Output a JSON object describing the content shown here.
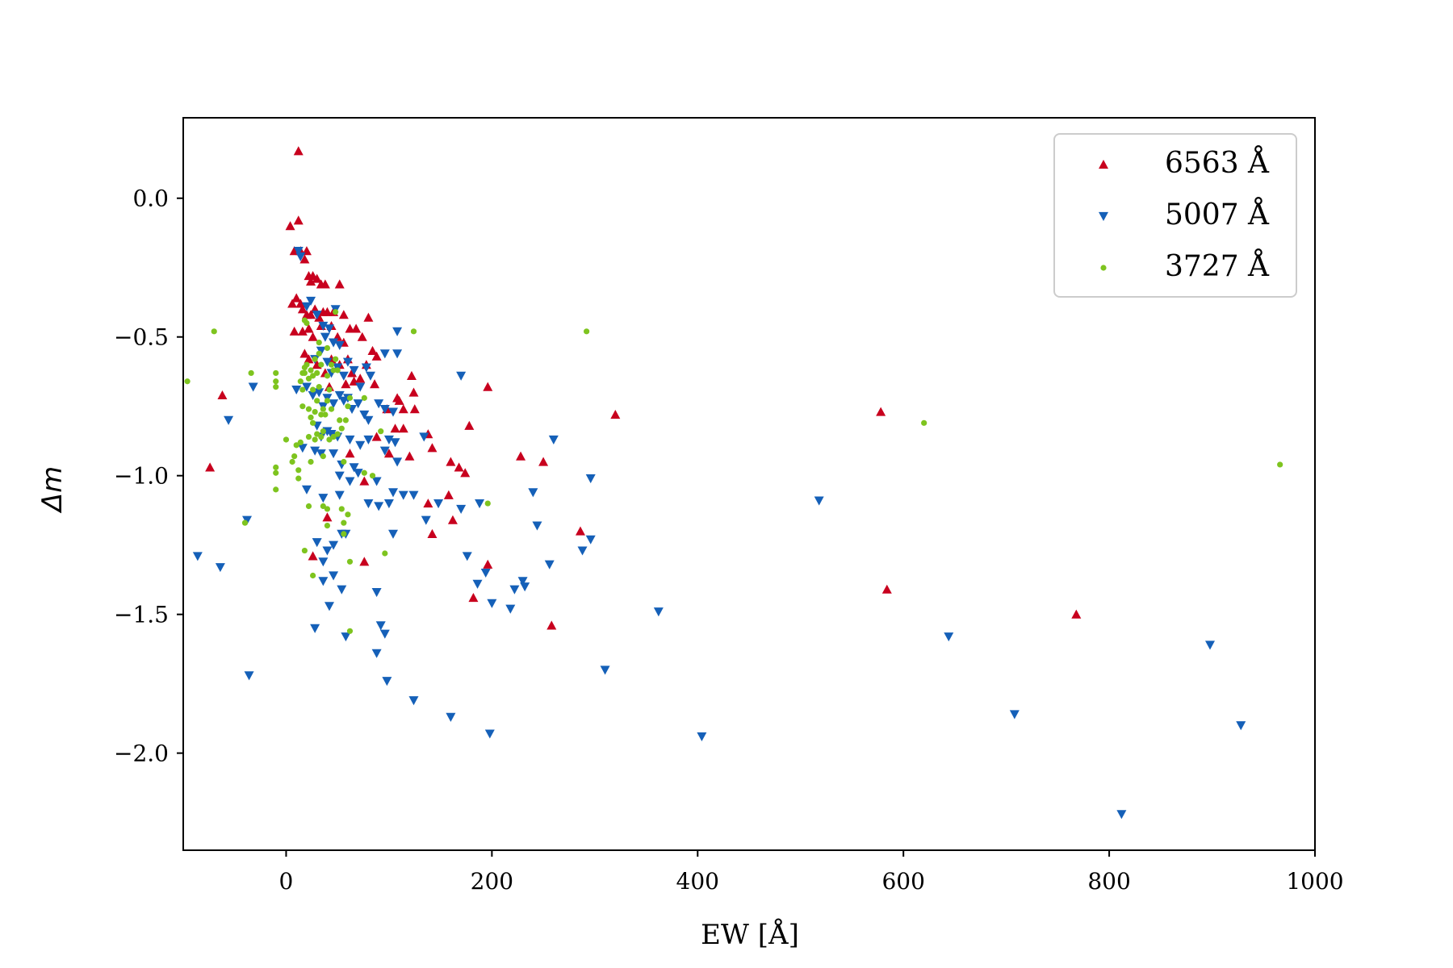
{
  "chart_data": {
    "type": "scatter",
    "xlabel": "EW [Å]",
    "ylabel": "Δm",
    "xlim": [
      -100,
      1000
    ],
    "ylim": [
      -2.35,
      0.29
    ],
    "x_ticks": [
      0,
      200,
      400,
      600,
      800,
      1000
    ],
    "x_tick_labels": [
      "0",
      "200",
      "400",
      "600",
      "800",
      "1000"
    ],
    "y_ticks": [
      0.0,
      -0.5,
      -1.0,
      -1.5,
      -2.0
    ],
    "y_tick_labels": [
      "0.0",
      "−0.5",
      "−1.0",
      "−1.5",
      "−2.0"
    ],
    "grid": false,
    "legend_position": "top-right",
    "series": [
      {
        "name": "6563 Å",
        "marker": "triangle-up",
        "color": "#c8001e",
        "points": [
          [
            12,
            0.17
          ],
          [
            12,
            -0.08
          ],
          [
            4,
            -0.1
          ],
          [
            8,
            -0.19
          ],
          [
            14,
            -0.19
          ],
          [
            18,
            -0.22
          ],
          [
            20,
            -0.19
          ],
          [
            22,
            -0.28
          ],
          [
            24,
            -0.3
          ],
          [
            26,
            -0.28
          ],
          [
            30,
            -0.29
          ],
          [
            34,
            -0.31
          ],
          [
            38,
            -0.31
          ],
          [
            52,
            -0.31
          ],
          [
            6,
            -0.38
          ],
          [
            10,
            -0.36
          ],
          [
            14,
            -0.38
          ],
          [
            16,
            -0.4
          ],
          [
            20,
            -0.42
          ],
          [
            24,
            -0.42
          ],
          [
            28,
            -0.4
          ],
          [
            32,
            -0.43
          ],
          [
            36,
            -0.41
          ],
          [
            40,
            -0.41
          ],
          [
            46,
            -0.41
          ],
          [
            56,
            -0.42
          ],
          [
            80,
            -0.43
          ],
          [
            8,
            -0.48
          ],
          [
            16,
            -0.48
          ],
          [
            22,
            -0.47
          ],
          [
            26,
            -0.5
          ],
          [
            34,
            -0.46
          ],
          [
            44,
            -0.46
          ],
          [
            50,
            -0.5
          ],
          [
            56,
            -0.52
          ],
          [
            62,
            -0.47
          ],
          [
            68,
            -0.47
          ],
          [
            74,
            -0.5
          ],
          [
            84,
            -0.55
          ],
          [
            88,
            -0.57
          ],
          [
            18,
            -0.56
          ],
          [
            22,
            -0.58
          ],
          [
            30,
            -0.6
          ],
          [
            38,
            -0.63
          ],
          [
            44,
            -0.58
          ],
          [
            52,
            -0.6
          ],
          [
            60,
            -0.58
          ],
          [
            64,
            -0.63
          ],
          [
            72,
            -0.65
          ],
          [
            78,
            -0.6
          ],
          [
            86,
            -0.67
          ],
          [
            42,
            -0.68
          ],
          [
            58,
            -0.67
          ],
          [
            66,
            -0.66
          ],
          [
            110,
            -0.73
          ],
          [
            114,
            -0.76
          ],
          [
            122,
            -0.64
          ],
          [
            124,
            -0.7
          ],
          [
            108,
            -0.72
          ],
          [
            125,
            -0.76
          ],
          [
            -62,
            -0.71
          ],
          [
            -74,
            -0.97
          ],
          [
            98,
            -0.76
          ],
          [
            106,
            -0.83
          ],
          [
            114,
            -0.83
          ],
          [
            88,
            -0.86
          ],
          [
            138,
            -0.85
          ],
          [
            142,
            -0.9
          ],
          [
            120,
            -0.93
          ],
          [
            100,
            -0.92
          ],
          [
            62,
            -0.92
          ],
          [
            76,
            -1.02
          ],
          [
            40,
            -1.15
          ],
          [
            26,
            -1.29
          ],
          [
            76,
            -1.31
          ],
          [
            160,
            -0.95
          ],
          [
            168,
            -0.97
          ],
          [
            174,
            -0.99
          ],
          [
            178,
            -0.82
          ],
          [
            196,
            -0.68
          ],
          [
            228,
            -0.93
          ],
          [
            250,
            -0.95
          ],
          [
            158,
            -1.07
          ],
          [
            138,
            -1.1
          ],
          [
            142,
            -1.21
          ],
          [
            162,
            -1.16
          ],
          [
            196,
            -1.32
          ],
          [
            182,
            -1.44
          ],
          [
            258,
            -1.54
          ],
          [
            286,
            -1.2
          ],
          [
            320,
            -0.78
          ],
          [
            578,
            -0.77
          ],
          [
            584,
            -1.41
          ],
          [
            768,
            -1.5
          ]
        ]
      },
      {
        "name": "5007 Å",
        "marker": "triangle-down",
        "color": "#1560b8",
        "points": [
          [
            12,
            -0.19
          ],
          [
            14,
            -0.21
          ],
          [
            20,
            -0.39
          ],
          [
            24,
            -0.37
          ],
          [
            30,
            -0.42
          ],
          [
            36,
            -0.46
          ],
          [
            38,
            -0.5
          ],
          [
            42,
            -0.47
          ],
          [
            48,
            -0.4
          ],
          [
            46,
            -0.52
          ],
          [
            52,
            -0.53
          ],
          [
            28,
            -0.58
          ],
          [
            34,
            -0.55
          ],
          [
            40,
            -0.59
          ],
          [
            44,
            -0.63
          ],
          [
            50,
            -0.61
          ],
          [
            56,
            -0.64
          ],
          [
            60,
            -0.59
          ],
          [
            66,
            -0.62
          ],
          [
            72,
            -0.68
          ],
          [
            78,
            -0.61
          ],
          [
            82,
            -0.64
          ],
          [
            108,
            -0.48
          ],
          [
            108,
            -0.56
          ],
          [
            96,
            -0.56
          ],
          [
            10,
            -0.69
          ],
          [
            20,
            -0.68
          ],
          [
            26,
            -0.71
          ],
          [
            32,
            -0.7
          ],
          [
            36,
            -0.75
          ],
          [
            40,
            -0.72
          ],
          [
            46,
            -0.74
          ],
          [
            52,
            -0.71
          ],
          [
            56,
            -0.73
          ],
          [
            60,
            -0.72
          ],
          [
            64,
            -0.76
          ],
          [
            70,
            -0.74
          ],
          [
            76,
            -0.78
          ],
          [
            80,
            -0.8
          ],
          [
            90,
            -0.74
          ],
          [
            96,
            -0.76
          ],
          [
            104,
            -0.77
          ],
          [
            30,
            -0.82
          ],
          [
            34,
            -0.86
          ],
          [
            40,
            -0.84
          ],
          [
            44,
            -0.85
          ],
          [
            50,
            -0.86
          ],
          [
            62,
            -0.87
          ],
          [
            72,
            -0.89
          ],
          [
            80,
            -0.87
          ],
          [
            100,
            -0.87
          ],
          [
            106,
            -0.88
          ],
          [
            134,
            -0.86
          ],
          [
            16,
            -0.9
          ],
          [
            28,
            -0.91
          ],
          [
            34,
            -0.92
          ],
          [
            46,
            -0.92
          ],
          [
            54,
            -0.96
          ],
          [
            66,
            -0.97
          ],
          [
            96,
            -0.91
          ],
          [
            108,
            -0.95
          ],
          [
            52,
            -1.0
          ],
          [
            62,
            -1.02
          ],
          [
            70,
            -0.99
          ],
          [
            88,
            -1.02
          ],
          [
            104,
            -1.06
          ],
          [
            20,
            -1.05
          ],
          [
            36,
            -1.08
          ],
          [
            52,
            -1.07
          ],
          [
            80,
            -1.1
          ],
          [
            90,
            -1.11
          ],
          [
            100,
            -1.1
          ],
          [
            114,
            -1.07
          ],
          [
            124,
            -1.07
          ],
          [
            136,
            -1.16
          ],
          [
            148,
            -1.1
          ],
          [
            170,
            -1.12
          ],
          [
            188,
            -1.1
          ],
          [
            240,
            -1.06
          ],
          [
            260,
            -0.87
          ],
          [
            170,
            -0.64
          ],
          [
            296,
            -1.01
          ],
          [
            -56,
            -0.8
          ],
          [
            -38,
            -1.16
          ],
          [
            -32,
            -0.68
          ],
          [
            -86,
            -1.29
          ],
          [
            -64,
            -1.33
          ],
          [
            -36,
            -1.72
          ],
          [
            30,
            -1.24
          ],
          [
            36,
            -1.31
          ],
          [
            40,
            -1.27
          ],
          [
            46,
            -1.25
          ],
          [
            54,
            -1.21
          ],
          [
            58,
            -1.21
          ],
          [
            36,
            -1.38
          ],
          [
            46,
            -1.36
          ],
          [
            54,
            -1.41
          ],
          [
            28,
            -1.55
          ],
          [
            42,
            -1.47
          ],
          [
            58,
            -1.58
          ],
          [
            88,
            -1.42
          ],
          [
            92,
            -1.54
          ],
          [
            96,
            -1.57
          ],
          [
            88,
            -1.64
          ],
          [
            98,
            -1.74
          ],
          [
            104,
            -1.21
          ],
          [
            124,
            -1.81
          ],
          [
            160,
            -1.87
          ],
          [
            176,
            -1.29
          ],
          [
            186,
            -1.39
          ],
          [
            194,
            -1.35
          ],
          [
            198,
            -1.93
          ],
          [
            200,
            -1.46
          ],
          [
            218,
            -1.48
          ],
          [
            222,
            -1.41
          ],
          [
            230,
            -1.38
          ],
          [
            232,
            -1.4
          ],
          [
            244,
            -1.18
          ],
          [
            256,
            -1.32
          ],
          [
            288,
            -1.27
          ],
          [
            296,
            -1.23
          ],
          [
            310,
            -1.7
          ],
          [
            362,
            -1.49
          ],
          [
            404,
            -1.94
          ],
          [
            518,
            -1.09
          ],
          [
            644,
            -1.58
          ],
          [
            708,
            -1.86
          ],
          [
            812,
            -2.22
          ],
          [
            898,
            -1.61
          ],
          [
            928,
            -1.9
          ]
        ]
      },
      {
        "name": "3727 Å",
        "marker": "circle",
        "color": "#7ec41f",
        "points": [
          [
            -96,
            -0.66
          ],
          [
            -70,
            -0.48
          ],
          [
            -34,
            -0.63
          ],
          [
            -40,
            -1.17
          ],
          [
            -10,
            -0.63
          ],
          [
            -10,
            -0.66
          ],
          [
            -10,
            -0.68
          ],
          [
            -10,
            -0.97
          ],
          [
            -10,
            -0.99
          ],
          [
            -10,
            -1.05
          ],
          [
            0,
            -0.87
          ],
          [
            6,
            -0.95
          ],
          [
            8,
            -0.93
          ],
          [
            10,
            -0.89
          ],
          [
            12,
            -0.98
          ],
          [
            12,
            -1.01
          ],
          [
            14,
            -0.88
          ],
          [
            14,
            -0.66
          ],
          [
            16,
            -0.69
          ],
          [
            16,
            -0.75
          ],
          [
            16,
            -0.63
          ],
          [
            18,
            -0.61
          ],
          [
            18,
            -0.63
          ],
          [
            18,
            -0.44
          ],
          [
            20,
            -0.45
          ],
          [
            20,
            -0.6
          ],
          [
            22,
            -0.65
          ],
          [
            22,
            -0.76
          ],
          [
            22,
            -0.86
          ],
          [
            24,
            -0.62
          ],
          [
            24,
            -0.79
          ],
          [
            24,
            -0.95
          ],
          [
            26,
            -0.64
          ],
          [
            26,
            -0.69
          ],
          [
            26,
            -0.81
          ],
          [
            28,
            -0.58
          ],
          [
            28,
            -0.77
          ],
          [
            28,
            -0.87
          ],
          [
            30,
            -0.63
          ],
          [
            30,
            -0.73
          ],
          [
            30,
            -0.85
          ],
          [
            32,
            -0.52
          ],
          [
            32,
            -0.56
          ],
          [
            32,
            -0.68
          ],
          [
            34,
            -0.6
          ],
          [
            34,
            -0.78
          ],
          [
            34,
            -0.86
          ],
          [
            36,
            -0.76
          ],
          [
            36,
            -0.84
          ],
          [
            36,
            -0.93
          ],
          [
            38,
            -0.78
          ],
          [
            40,
            -0.54
          ],
          [
            40,
            -0.64
          ],
          [
            40,
            -0.73
          ],
          [
            42,
            -0.69
          ],
          [
            42,
            -0.87
          ],
          [
            44,
            -0.6
          ],
          [
            44,
            -0.76
          ],
          [
            46,
            -0.62
          ],
          [
            46,
            -0.86
          ],
          [
            48,
            -0.41
          ],
          [
            48,
            -0.58
          ],
          [
            50,
            -0.62
          ],
          [
            50,
            -0.85
          ],
          [
            52,
            -0.8
          ],
          [
            54,
            -0.83
          ],
          [
            56,
            -0.95
          ],
          [
            58,
            -0.8
          ],
          [
            60,
            -0.75
          ],
          [
            62,
            -0.72
          ],
          [
            76,
            -0.72
          ],
          [
            18,
            -1.27
          ],
          [
            26,
            -1.36
          ],
          [
            22,
            -1.11
          ],
          [
            36,
            -1.11
          ],
          [
            40,
            -1.12
          ],
          [
            40,
            -1.18
          ],
          [
            54,
            -1.12
          ],
          [
            56,
            -1.17
          ],
          [
            56,
            -1.21
          ],
          [
            60,
            -1.14
          ],
          [
            62,
            -1.31
          ],
          [
            62,
            -1.56
          ],
          [
            76,
            -0.99
          ],
          [
            84,
            -1.0
          ],
          [
            92,
            -0.84
          ],
          [
            96,
            -1.28
          ],
          [
            124,
            -0.48
          ],
          [
            196,
            -1.1
          ],
          [
            292,
            -0.48
          ],
          [
            620,
            -0.81
          ],
          [
            966,
            -0.96
          ]
        ]
      }
    ]
  }
}
